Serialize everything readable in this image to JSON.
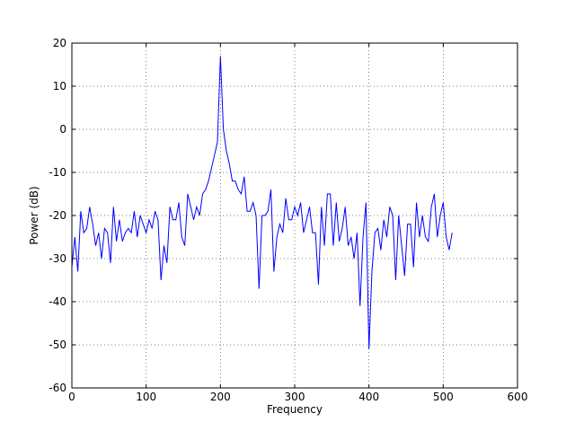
{
  "chart_data": {
    "type": "line",
    "xlabel": "Frequency",
    "ylabel": "Power (dB)",
    "x": [
      0,
      4,
      8,
      12,
      16,
      20,
      24,
      28,
      32,
      36,
      40,
      44,
      48,
      52,
      56,
      60,
      64,
      68,
      72,
      76,
      80,
      84,
      88,
      92,
      96,
      100,
      104,
      108,
      112,
      116,
      120,
      124,
      128,
      132,
      136,
      140,
      144,
      148,
      152,
      156,
      160,
      164,
      168,
      172,
      176,
      180,
      184,
      188,
      192,
      196,
      200,
      204,
      208,
      212,
      216,
      220,
      224,
      228,
      232,
      236,
      240,
      244,
      248,
      252,
      256,
      260,
      264,
      268,
      272,
      276,
      280,
      284,
      288,
      292,
      296,
      300,
      304,
      308,
      312,
      316,
      320,
      324,
      328,
      332,
      336,
      340,
      344,
      348,
      352,
      356,
      360,
      364,
      368,
      372,
      376,
      380,
      384,
      388,
      392,
      396,
      400,
      404,
      408,
      412,
      416,
      420,
      424,
      428,
      432,
      436,
      440,
      444,
      448,
      452,
      456,
      460,
      464,
      468,
      472,
      476,
      480,
      484,
      488,
      492,
      496,
      500,
      504,
      508,
      512
    ],
    "series": [
      {
        "color": "#0000ff",
        "values": [
          -32,
          -25,
          -33,
          -19,
          -24,
          -23,
          -18,
          -22,
          -27,
          -24,
          -30,
          -23,
          -24,
          -31,
          -18,
          -26,
          -21,
          -26,
          -24,
          -23,
          -24,
          -19,
          -25,
          -20,
          -22,
          -24,
          -21,
          -23,
          -19,
          -21,
          -35,
          -27,
          -31,
          -18,
          -21,
          -21,
          -17,
          -25,
          -27,
          -15,
          -18,
          -21,
          -18,
          -20,
          -15,
          -14,
          -12,
          -9,
          -6,
          -3,
          17,
          0,
          -5,
          -8,
          -12,
          -12,
          -14,
          -15,
          -11,
          -19,
          -19,
          -17,
          -20,
          -37,
          -20,
          -20,
          -19,
          -14,
          -33,
          -25,
          -22,
          -24,
          -16,
          -21,
          -21,
          -18,
          -20,
          -17,
          -24,
          -21,
          -18,
          -24,
          -24,
          -36,
          -18,
          -27,
          -15,
          -15,
          -27,
          -17,
          -26,
          -23,
          -18,
          -27,
          -25,
          -30,
          -24,
          -41,
          -25,
          -17,
          -51,
          -33,
          -24,
          -23,
          -28,
          -21,
          -25,
          -18,
          -20,
          -35,
          -20,
          -27,
          -34,
          -22,
          -22,
          -32,
          -17,
          -25,
          -20,
          -25,
          -26,
          -18,
          -15,
          -25,
          -20,
          -17,
          -25,
          -28,
          -24
        ]
      }
    ],
    "xlim": [
      0,
      600
    ],
    "xticks": [
      0,
      100,
      200,
      300,
      400,
      500,
      600
    ],
    "ylim": [
      -60,
      20
    ],
    "yticks": [
      -60,
      -50,
      -40,
      -30,
      -20,
      -10,
      0,
      10,
      20
    ],
    "grid": true
  }
}
